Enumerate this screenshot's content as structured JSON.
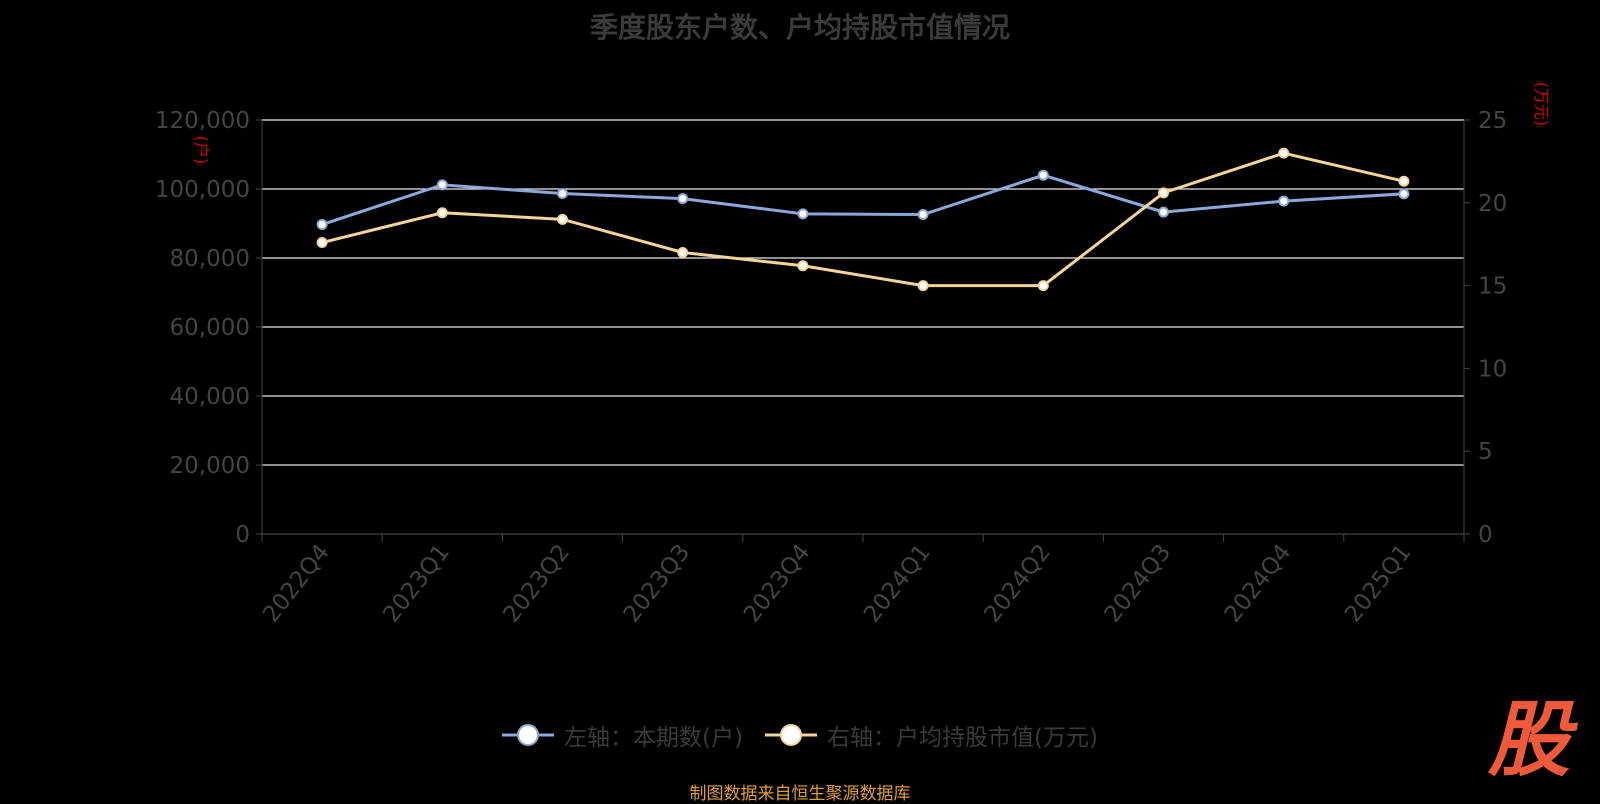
{
  "title": "季度股东户数、户均持股市值情况",
  "left_unit": "(户)",
  "right_unit": "(万元)",
  "source": "制图数据来自恒生聚源数据库",
  "logo_text": "股",
  "colors": {
    "left_series": "#8aa9d8",
    "right_series": "#f5d49a",
    "axis_unit": "#d40000",
    "grid": "#e8e8e8",
    "axis_text": "#444444"
  },
  "chart_data": {
    "type": "line",
    "title": "季度股东户数、户均持股市值情况",
    "categories": [
      "2022Q4",
      "2023Q1",
      "2023Q2",
      "2023Q3",
      "2023Q4",
      "2024Q1",
      "2024Q2",
      "2024Q3",
      "2024Q4",
      "2025Q1"
    ],
    "y_left": {
      "label": "(户)",
      "min": 0,
      "max": 120000,
      "ticks": [
        0,
        20000,
        40000,
        60000,
        80000,
        100000,
        120000
      ],
      "tick_labels": [
        "0",
        "20,000",
        "40,000",
        "60,000",
        "80,000",
        "100,000",
        "120,000"
      ]
    },
    "y_right": {
      "label": "(万元)",
      "min": 0,
      "max": 25,
      "ticks": [
        0,
        5,
        10,
        15,
        20,
        25
      ],
      "tick_labels": [
        "0",
        "5",
        "10",
        "15",
        "20",
        "25"
      ]
    },
    "grid": true,
    "legend_position": "bottom",
    "series": [
      {
        "name": "左轴：本期数(户)",
        "axis": "left",
        "color": "#8aa9d8",
        "values": [
          89700,
          101200,
          98700,
          97200,
          92800,
          92600,
          104000,
          93300,
          96500,
          98600
        ]
      },
      {
        "name": "右轴：户均持股市值(万元)",
        "axis": "right",
        "color": "#f5d49a",
        "values": [
          17.6,
          19.4,
          19.0,
          17.0,
          16.2,
          15.0,
          15.0,
          20.6,
          23.0,
          21.3
        ]
      }
    ]
  }
}
